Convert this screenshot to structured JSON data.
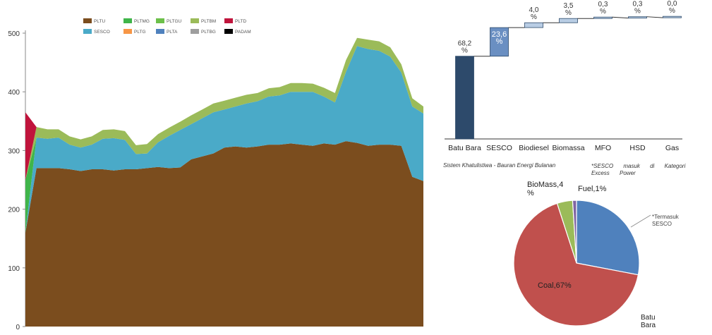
{
  "colors": {
    "PLTU": "#7b4d1e",
    "SESCO": "#4aaac8",
    "PLTMG": "#3fb54a",
    "PLTG": "#f79646",
    "PLTGU": "#6cc04a",
    "PLTA": "#4f81bd",
    "PLTBM": "#9bbb59",
    "PLTBG": "#9e9e9e",
    "PLTD": "#c0143c",
    "PADAM": "#000000",
    "waterfall_dark": "#2d4a6b",
    "waterfall_light": "#b9cde4",
    "waterfall_sesco": "#6a8fc2",
    "pie_fossil": "#4f81bd",
    "pie_coal": "#c0504d",
    "pie_biomass": "#9bbb59",
    "pie_fuel": "#8064a2"
  },
  "chart_data": [
    {
      "type": "area",
      "stacked": true,
      "ylim": [
        0,
        500
      ],
      "yticks": [
        0,
        100,
        200,
        300,
        400,
        500
      ],
      "grid": false,
      "legend_position": "top",
      "legend": [
        [
          "PLTU",
          "PLTMG",
          "PLTGU",
          "PLTBM",
          "PLTD"
        ],
        [
          "SESCO",
          "PLTG",
          "PLTA",
          "PLTBG",
          "PADAM"
        ]
      ],
      "x": [
        0,
        1,
        2,
        3,
        4,
        5,
        6,
        7,
        8,
        9,
        10,
        11,
        12,
        13,
        14,
        15,
        16,
        17,
        18,
        19,
        20,
        21,
        22,
        23,
        24,
        25,
        26,
        27,
        28,
        29,
        30,
        31,
        32,
        33,
        34,
        35,
        36
      ],
      "series": [
        {
          "name": "PLTU",
          "values": [
            160,
            270,
            270,
            270,
            268,
            265,
            268,
            268,
            266,
            268,
            268,
            270,
            272,
            270,
            271,
            285,
            290,
            295,
            305,
            307,
            305,
            307,
            310,
            310,
            312,
            310,
            308,
            312,
            310,
            316,
            313,
            308,
            310,
            310,
            308,
            255,
            248
          ]
        },
        {
          "name": "SESCO",
          "values": [
            0,
            52,
            50,
            52,
            42,
            40,
            42,
            52,
            55,
            50,
            26,
            25,
            42,
            55,
            64,
            60,
            65,
            70,
            65,
            68,
            75,
            77,
            82,
            84,
            88,
            90,
            92,
            80,
            72,
            118,
            165,
            165,
            160,
            150,
            125,
            120,
            115
          ]
        },
        {
          "name": "PLTMG",
          "values": [
            90,
            0,
            0,
            0,
            0,
            0,
            0,
            0,
            0,
            0,
            0,
            0,
            0,
            0,
            0,
            0,
            0,
            0,
            0,
            0,
            0,
            0,
            0,
            0,
            0,
            0,
            0,
            0,
            0,
            0,
            0,
            0,
            0,
            0,
            0,
            0,
            0
          ]
        },
        {
          "name": "PLTGU",
          "values": [
            0,
            0,
            0,
            0,
            0,
            0,
            0,
            0,
            0,
            0,
            0,
            0,
            0,
            0,
            0,
            0,
            0,
            0,
            0,
            0,
            0,
            0,
            0,
            0,
            0,
            0,
            0,
            0,
            0,
            0,
            0,
            0,
            0,
            0,
            0,
            0,
            0
          ]
        },
        {
          "name": "PLTG",
          "values": [
            0,
            0,
            0,
            0,
            0,
            0,
            0,
            0,
            0,
            0,
            0,
            0,
            0,
            0,
            0,
            0,
            0,
            0,
            0,
            0,
            0,
            0,
            0,
            0,
            0,
            0,
            0,
            0,
            0,
            0,
            0,
            0,
            0,
            0,
            0,
            0,
            0
          ]
        },
        {
          "name": "PLTA",
          "values": [
            0,
            0,
            0,
            0,
            0,
            0,
            0,
            0,
            0,
            0,
            0,
            0,
            0,
            0,
            0,
            0,
            0,
            0,
            0,
            0,
            0,
            0,
            0,
            0,
            0,
            0,
            0,
            0,
            0,
            0,
            0,
            0,
            0,
            0,
            0,
            0,
            0
          ]
        },
        {
          "name": "PLTBM",
          "values": [
            0,
            18,
            16,
            14,
            14,
            14,
            14,
            15,
            15,
            15,
            15,
            16,
            14,
            14,
            14,
            15,
            15,
            15,
            15,
            15,
            15,
            14,
            14,
            14,
            15,
            15,
            14,
            15,
            16,
            20,
            14,
            16,
            16,
            16,
            14,
            14,
            12
          ]
        },
        {
          "name": "PLTBG",
          "values": [
            0,
            0,
            0,
            0,
            0,
            0,
            0,
            0,
            0,
            0,
            0,
            0,
            0,
            0,
            0,
            0,
            0,
            0,
            0,
            0,
            0,
            0,
            0,
            0,
            0,
            0,
            0,
            0,
            0,
            0,
            0,
            0,
            0,
            0,
            0,
            0,
            0
          ]
        },
        {
          "name": "PLTD",
          "values": [
            115,
            0,
            0,
            0,
            0,
            0,
            0,
            0,
            0,
            0,
            0,
            0,
            0,
            0,
            0,
            0,
            0,
            0,
            0,
            0,
            0,
            0,
            0,
            0,
            0,
            0,
            0,
            0,
            0,
            0,
            0,
            0,
            0,
            0,
            0,
            0,
            0
          ]
        },
        {
          "name": "PADAM",
          "values": [
            0,
            0,
            0,
            0,
            0,
            0,
            0,
            0,
            0,
            0,
            0,
            0,
            0,
            0,
            0,
            0,
            0,
            0,
            0,
            0,
            0,
            0,
            0,
            0,
            0,
            0,
            0,
            0,
            0,
            0,
            0,
            0,
            0,
            0,
            0,
            0,
            0
          ]
        }
      ]
    },
    {
      "type": "bar",
      "subtype": "waterfall",
      "categories": [
        "Batu Bara",
        "SESCO",
        "Biodiesel",
        "Biomassa",
        "MFO",
        "HSD",
        "Gas"
      ],
      "values": [
        68.2,
        23.6,
        4.0,
        3.5,
        0.3,
        0.3,
        0.0
      ],
      "value_labels": [
        "68,2\n%",
        "23,6\n%",
        "4,0\n%",
        "3,5\n%",
        "0,3\n%",
        "0,3\n%",
        "0,0\n%"
      ],
      "ylim": [
        0,
        100
      ],
      "caption": "Sistem Khatulistiwa - Bauran Energi Bulanan",
      "note": "*SESCO masuk di Kategori Excess Power"
    },
    {
      "type": "pie",
      "slices": [
        {
          "label": "",
          "value": 28,
          "color_key": "pie_fossil"
        },
        {
          "label": "Coal,67%",
          "value": 67,
          "color_key": "pie_coal"
        },
        {
          "label": "BioMass,4\n%",
          "value": 4,
          "color_key": "pie_biomass"
        },
        {
          "label": "Fuel,1%",
          "value": 1,
          "color_key": "pie_fuel"
        }
      ],
      "callouts": {
        "sesco": "*Termasuk\nSESCO",
        "batu_bara": "Batu\nBara"
      }
    }
  ]
}
